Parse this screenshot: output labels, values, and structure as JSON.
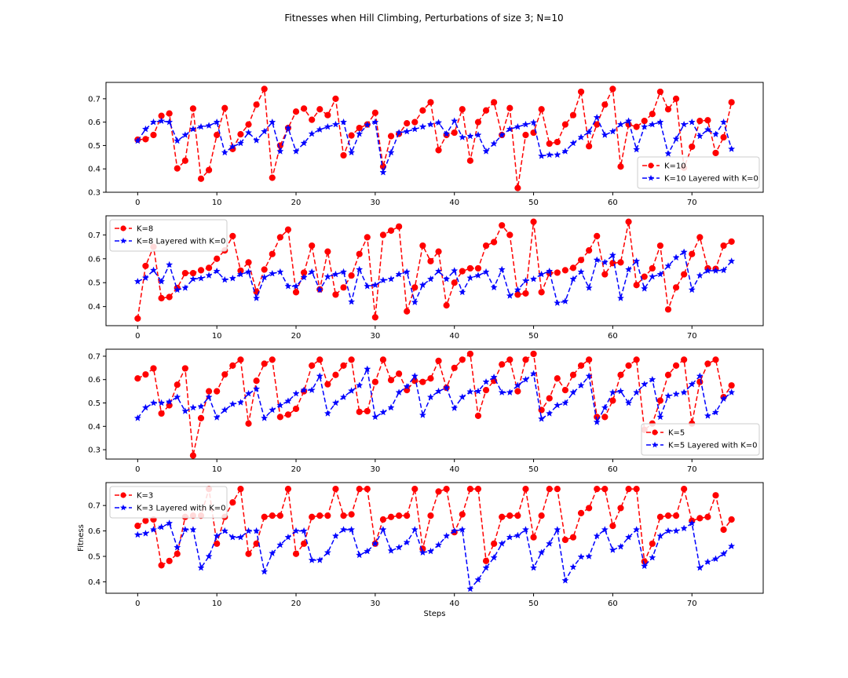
{
  "figure": {
    "title": "Fitnesses when Hill Climbing, Perturbations of size 3; N=10"
  },
  "chart_data": [
    {
      "type": "line",
      "xlabel": "",
      "ylabel": "",
      "xlim": [
        -4,
        79
      ],
      "ylim": [
        0.3,
        0.77
      ],
      "xticks": [
        0,
        10,
        20,
        30,
        40,
        50,
        60,
        70
      ],
      "yticks": [
        0.3,
        0.4,
        0.5,
        0.6,
        0.7
      ],
      "legend_position": "bottom-right",
      "series": [
        {
          "name": "K=10",
          "color": "#ff0000",
          "marker": "circle",
          "values": [
            0.525,
            0.527,
            0.545,
            0.627,
            0.637,
            0.402,
            0.435,
            0.658,
            0.358,
            0.395,
            0.545,
            0.66,
            0.485,
            0.548,
            0.59,
            0.675,
            0.742,
            0.362,
            0.5,
            0.575,
            0.645,
            0.658,
            0.61,
            0.655,
            0.63,
            0.7,
            0.458,
            0.543,
            0.575,
            0.59,
            0.64,
            0.41,
            0.54,
            0.55,
            0.595,
            0.6,
            0.65,
            0.685,
            0.48,
            0.545,
            0.555,
            0.655,
            0.435,
            0.6,
            0.65,
            0.685,
            0.545,
            0.66,
            0.318,
            0.545,
            0.555,
            0.655,
            0.508,
            0.515,
            0.59,
            0.63,
            0.73,
            0.497,
            0.59,
            0.675,
            0.742,
            0.41,
            0.59,
            0.58,
            0.605,
            0.635,
            0.73,
            0.655,
            0.7,
            0.405,
            0.495,
            0.605,
            0.608,
            0.468,
            0.535,
            0.685
          ]
        },
        {
          "name": "K=10 Layered with K=0",
          "color": "#0000ff",
          "marker": "star",
          "values": [
            0.52,
            0.57,
            0.6,
            0.605,
            0.6,
            0.52,
            0.545,
            0.57,
            0.58,
            0.585,
            0.6,
            0.47,
            0.495,
            0.51,
            0.555,
            0.522,
            0.56,
            0.6,
            0.475,
            0.575,
            0.475,
            0.51,
            0.55,
            0.568,
            0.58,
            0.59,
            0.6,
            0.47,
            0.55,
            0.588,
            0.6,
            0.385,
            0.47,
            0.555,
            0.56,
            0.57,
            0.58,
            0.59,
            0.598,
            0.55,
            0.605,
            0.535,
            0.54,
            0.545,
            0.475,
            0.508,
            0.545,
            0.57,
            0.58,
            0.59,
            0.598,
            0.455,
            0.46,
            0.46,
            0.475,
            0.51,
            0.535,
            0.558,
            0.62,
            0.545,
            0.56,
            0.59,
            0.605,
            0.483,
            0.58,
            0.59,
            0.6,
            0.465,
            0.528,
            0.59,
            0.6,
            0.54,
            0.568,
            0.548,
            0.6,
            0.485
          ]
        }
      ]
    },
    {
      "type": "line",
      "xlabel": "",
      "ylabel": "",
      "xlim": [
        -4,
        79
      ],
      "ylim": [
        0.32,
        0.78
      ],
      "xticks": [
        0,
        10,
        20,
        30,
        40,
        50,
        60,
        70
      ],
      "yticks": [
        0.4,
        0.5,
        0.6,
        0.7
      ],
      "legend_position": "top-left",
      "series": [
        {
          "name": "K=8",
          "color": "#ff0000",
          "marker": "circle",
          "values": [
            0.35,
            0.57,
            0.65,
            0.435,
            0.44,
            0.478,
            0.54,
            0.54,
            0.552,
            0.562,
            0.6,
            0.635,
            0.695,
            0.55,
            0.585,
            0.462,
            0.555,
            0.62,
            0.69,
            0.722,
            0.46,
            0.542,
            0.655,
            0.472,
            0.63,
            0.45,
            0.48,
            0.53,
            0.62,
            0.69,
            0.355,
            0.7,
            0.718,
            0.735,
            0.38,
            0.48,
            0.655,
            0.59,
            0.63,
            0.405,
            0.5,
            0.548,
            0.56,
            0.56,
            0.655,
            0.67,
            0.74,
            0.7,
            0.45,
            0.455,
            0.755,
            0.46,
            0.54,
            0.542,
            0.552,
            0.562,
            0.595,
            0.635,
            0.695,
            0.535,
            0.582,
            0.585,
            0.755,
            0.49,
            0.525,
            0.56,
            0.655,
            0.388,
            0.48,
            0.535,
            0.62,
            0.69,
            0.56,
            0.558,
            0.655,
            0.672
          ]
        },
        {
          "name": "K=8 Layered with K=0",
          "color": "#0000ff",
          "marker": "star",
          "values": [
            0.505,
            0.52,
            0.552,
            0.505,
            0.575,
            0.47,
            0.478,
            0.515,
            0.518,
            0.53,
            0.548,
            0.512,
            0.518,
            0.535,
            0.545,
            0.435,
            0.522,
            0.538,
            0.545,
            0.485,
            0.485,
            0.522,
            0.545,
            0.47,
            0.525,
            0.535,
            0.545,
            0.42,
            0.555,
            0.485,
            0.49,
            0.51,
            0.515,
            0.535,
            0.545,
            0.418,
            0.49,
            0.515,
            0.548,
            0.515,
            0.55,
            0.46,
            0.52,
            0.53,
            0.545,
            0.48,
            0.555,
            0.445,
            0.47,
            0.508,
            0.515,
            0.535,
            0.548,
            0.415,
            0.422,
            0.515,
            0.545,
            0.478,
            0.595,
            0.585,
            0.615,
            0.435,
            0.555,
            0.59,
            0.475,
            0.525,
            0.535,
            0.57,
            0.605,
            0.628,
            0.47,
            0.53,
            0.55,
            0.55,
            0.552,
            0.59
          ]
        }
      ]
    },
    {
      "type": "line",
      "xlabel": "",
      "ylabel": "",
      "xlim": [
        -4,
        79
      ],
      "ylim": [
        0.26,
        0.73
      ],
      "xticks": [
        0,
        10,
        20,
        30,
        40,
        50,
        60,
        70
      ],
      "yticks": [
        0.3,
        0.4,
        0.5,
        0.6,
        0.7
      ],
      "legend_position": "bottom-right",
      "series": [
        {
          "name": "K=5",
          "color": "#ff0000",
          "marker": "circle",
          "values": [
            0.605,
            0.622,
            0.648,
            0.455,
            0.49,
            0.578,
            0.648,
            0.275,
            0.435,
            0.55,
            0.55,
            0.622,
            0.66,
            0.685,
            0.412,
            0.595,
            0.668,
            0.685,
            0.44,
            0.45,
            0.475,
            0.55,
            0.66,
            0.685,
            0.58,
            0.62,
            0.66,
            0.685,
            0.462,
            0.465,
            0.59,
            0.685,
            0.598,
            0.625,
            0.555,
            0.595,
            0.59,
            0.605,
            0.68,
            0.565,
            0.65,
            0.685,
            0.71,
            0.445,
            0.555,
            0.595,
            0.665,
            0.685,
            0.55,
            0.685,
            0.71,
            0.47,
            0.52,
            0.605,
            0.555,
            0.62,
            0.66,
            0.685,
            0.44,
            0.44,
            0.51,
            0.62,
            0.66,
            0.685,
            0.385,
            0.412,
            0.51,
            0.62,
            0.66,
            0.685,
            0.412,
            0.59,
            0.668,
            0.685,
            0.525,
            0.575
          ]
        },
        {
          "name": "K=5 Layered with K=0",
          "color": "#0000ff",
          "marker": "star",
          "values": [
            0.435,
            0.48,
            0.5,
            0.5,
            0.505,
            0.525,
            0.465,
            0.48,
            0.485,
            0.525,
            0.438,
            0.47,
            0.495,
            0.502,
            0.54,
            0.56,
            0.435,
            0.47,
            0.49,
            0.508,
            0.54,
            0.555,
            0.555,
            0.615,
            0.455,
            0.5,
            0.525,
            0.552,
            0.575,
            0.645,
            0.44,
            0.46,
            0.48,
            0.545,
            0.57,
            0.615,
            0.448,
            0.525,
            0.55,
            0.565,
            0.478,
            0.525,
            0.548,
            0.55,
            0.59,
            0.61,
            0.545,
            0.545,
            0.575,
            0.6,
            0.625,
            0.432,
            0.455,
            0.49,
            0.5,
            0.545,
            0.575,
            0.615,
            0.418,
            0.48,
            0.545,
            0.55,
            0.5,
            0.545,
            0.58,
            0.6,
            0.44,
            0.53,
            0.538,
            0.545,
            0.58,
            0.615,
            0.445,
            0.46,
            0.518,
            0.545
          ]
        }
      ]
    },
    {
      "type": "line",
      "xlabel": "Steps",
      "ylabel": "Fitness",
      "xlim": [
        -4,
        79
      ],
      "ylim": [
        0.355,
        0.79
      ],
      "xticks": [
        0,
        10,
        20,
        30,
        40,
        50,
        60,
        70
      ],
      "yticks": [
        0.4,
        0.5,
        0.6,
        0.7
      ],
      "legend_position": "top-left",
      "series": [
        {
          "name": "K=3",
          "color": "#ff0000",
          "marker": "circle",
          "values": [
            0.62,
            0.64,
            0.645,
            0.465,
            0.482,
            0.51,
            0.655,
            0.66,
            0.66,
            0.765,
            0.55,
            0.655,
            0.712,
            0.765,
            0.51,
            0.55,
            0.655,
            0.66,
            0.66,
            0.765,
            0.51,
            0.55,
            0.655,
            0.66,
            0.66,
            0.765,
            0.66,
            0.665,
            0.765,
            0.765,
            0.55,
            0.645,
            0.655,
            0.66,
            0.66,
            0.765,
            0.53,
            0.66,
            0.755,
            0.765,
            0.595,
            0.665,
            0.765,
            0.765,
            0.482,
            0.55,
            0.655,
            0.66,
            0.66,
            0.765,
            0.575,
            0.66,
            0.765,
            0.765,
            0.565,
            0.575,
            0.67,
            0.69,
            0.765,
            0.765,
            0.62,
            0.69,
            0.765,
            0.765,
            0.48,
            0.55,
            0.655,
            0.66,
            0.66,
            0.765,
            0.64,
            0.65,
            0.655,
            0.74,
            0.605,
            0.645
          ]
        },
        {
          "name": "K=3 Layered with K=0",
          "color": "#0000ff",
          "marker": "star",
          "values": [
            0.585,
            0.59,
            0.605,
            0.615,
            0.63,
            0.535,
            0.605,
            0.605,
            0.455,
            0.5,
            0.58,
            0.6,
            0.575,
            0.575,
            0.6,
            0.6,
            0.44,
            0.512,
            0.545,
            0.575,
            0.6,
            0.6,
            0.485,
            0.485,
            0.515,
            0.58,
            0.605,
            0.605,
            0.505,
            0.52,
            0.55,
            0.605,
            0.522,
            0.535,
            0.555,
            0.605,
            0.515,
            0.52,
            0.545,
            0.58,
            0.6,
            0.605,
            0.372,
            0.408,
            0.455,
            0.495,
            0.55,
            0.575,
            0.582,
            0.605,
            0.455,
            0.515,
            0.55,
            0.605,
            0.405,
            0.458,
            0.498,
            0.5,
            0.58,
            0.605,
            0.525,
            0.538,
            0.575,
            0.605,
            0.462,
            0.495,
            0.58,
            0.6,
            0.6,
            0.61,
            0.63,
            0.455,
            0.478,
            0.49,
            0.51,
            0.54
          ]
        }
      ]
    }
  ]
}
